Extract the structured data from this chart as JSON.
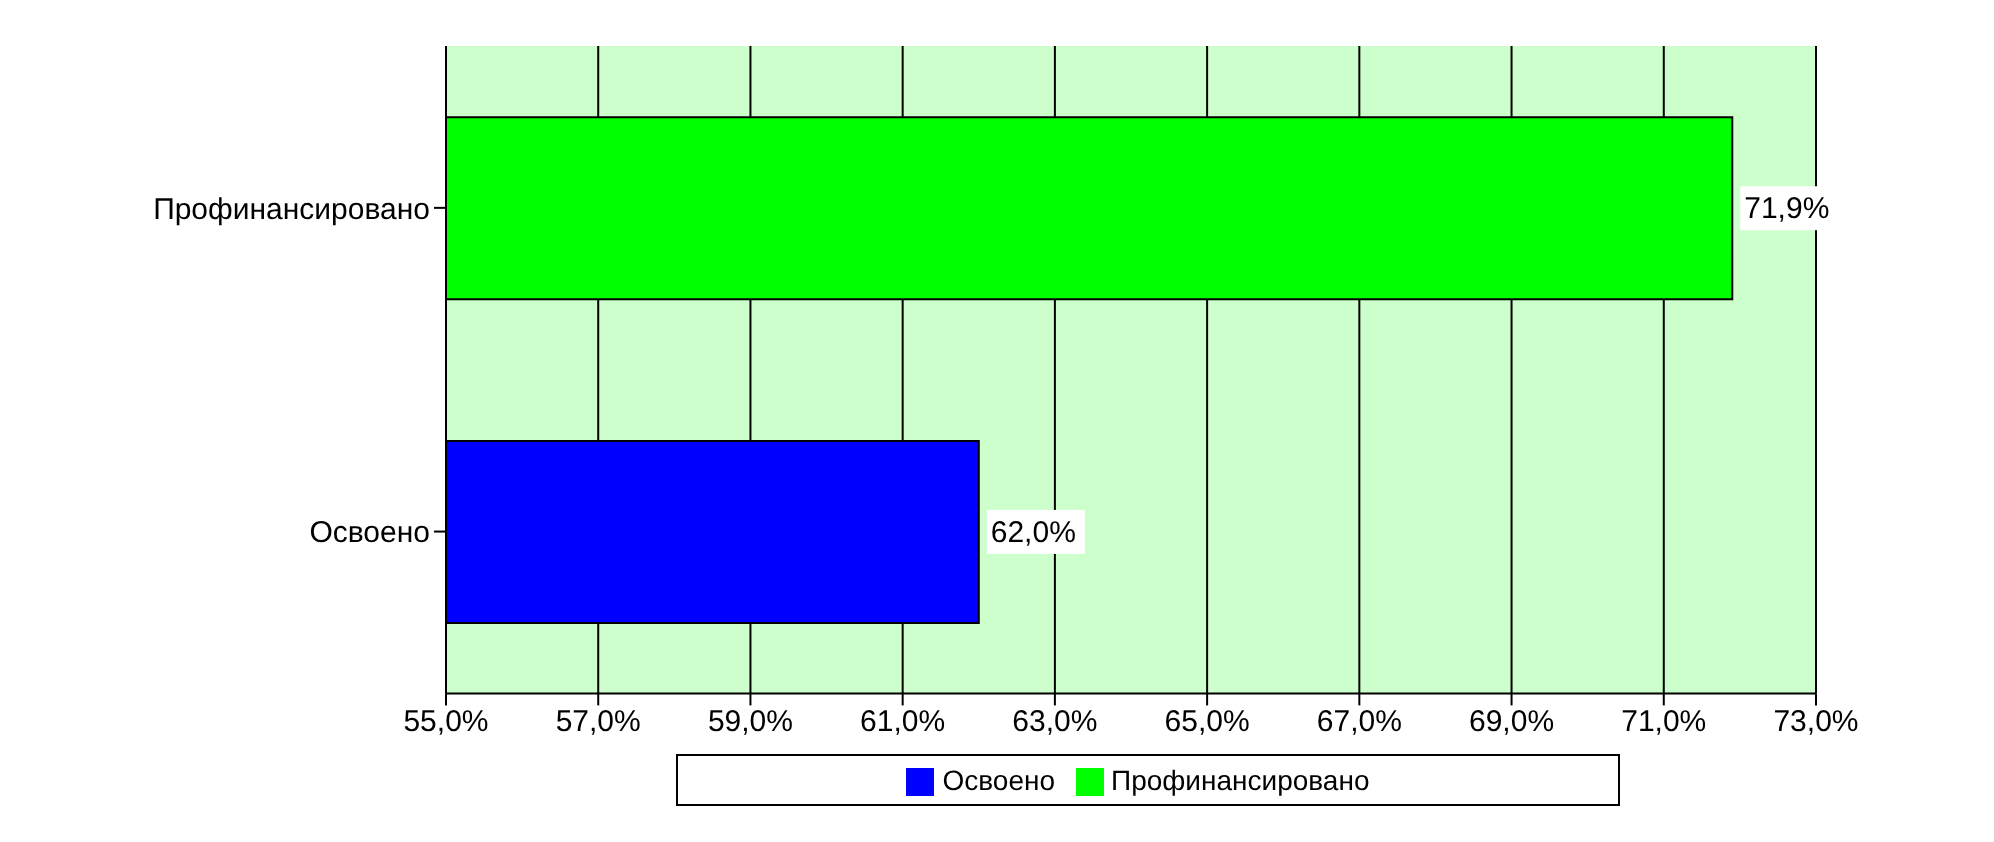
{
  "chart_data": {
    "type": "bar",
    "orientation": "horizontal",
    "categories": [
      "Профинансировано",
      "Освоено"
    ],
    "series": [
      {
        "name": "Освоено",
        "color": "#0000ff",
        "values": [
          null,
          62.0
        ],
        "value_labels": [
          null,
          "62,0%"
        ]
      },
      {
        "name": "Профинансировано",
        "color": "#00ff00",
        "values": [
          71.9,
          null
        ],
        "value_labels": [
          "71,9%",
          null
        ]
      }
    ],
    "xlim": [
      55,
      73
    ],
    "xticks": [
      {
        "value": 55,
        "label": "55,0%"
      },
      {
        "value": 57,
        "label": "57,0%"
      },
      {
        "value": 59,
        "label": "59,0%"
      },
      {
        "value": 61,
        "label": "61,0%"
      },
      {
        "value": 63,
        "label": "63,0%"
      },
      {
        "value": 65,
        "label": "65,0%"
      },
      {
        "value": 67,
        "label": "67,0%"
      },
      {
        "value": 69,
        "label": "69,0%"
      },
      {
        "value": 71,
        "label": "71,0%"
      },
      {
        "value": 73,
        "label": "73,0%"
      }
    ],
    "grid": "x",
    "legend": "bottom"
  }
}
